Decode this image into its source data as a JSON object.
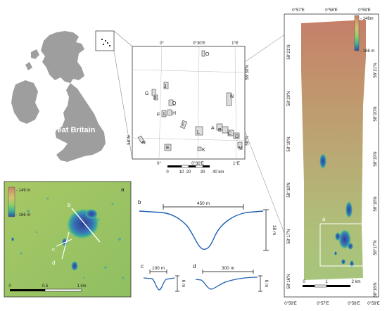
{
  "overview": {
    "country_label": "Great Britain"
  },
  "locator": {
    "lon_top": [
      "0°",
      "0°30'E",
      "1°E"
    ],
    "lon_bottom": [
      "0°",
      "0°30'E",
      "1°E"
    ],
    "lat_left": [
      "58°N"
    ],
    "lat_right": [
      "58°30'N",
      "58°N"
    ],
    "sites": [
      "O",
      "J",
      "G",
      "P",
      "Q",
      "F",
      "L",
      "H",
      "N",
      "I",
      "L",
      "A",
      "B",
      "C",
      "D",
      "R",
      "E",
      "K",
      "M"
    ],
    "scalebar": {
      "ticks": [
        "0",
        "10",
        "20",
        "30",
        "40 km"
      ]
    }
  },
  "survey": {
    "lon_top": [
      "0°57'E",
      "0°58'E",
      "0°59'E"
    ],
    "lon_bottom": [
      "0°56'E",
      "0°57'E",
      "0°58'E",
      "0°59'E"
    ],
    "lat_left": [
      "58°21'N",
      "58°20'N",
      "58°19'N",
      "58°18'N",
      "58°17'N",
      "58°16'N"
    ],
    "lat_right": [
      "58°21'N",
      "58°20'N",
      "58°19'N",
      "58°18'N",
      "58°17'N",
      "58°16'N"
    ],
    "legend": {
      "max": "- 146m",
      "min": "- 166 m"
    },
    "inset_label": "a",
    "scalebar": {
      "ticks": [
        "0",
        "1",
        "2 km"
      ]
    }
  },
  "detail": {
    "panel_label": "a",
    "legend": {
      "max": "- 149 m",
      "min": "- 166 m"
    },
    "profile_marks": [
      "b",
      "c",
      "d"
    ],
    "scalebar": {
      "ticks": [
        "0",
        "0.5",
        "1 km"
      ]
    }
  },
  "profiles": {
    "b": {
      "label": "b",
      "width": "450 m",
      "height": "18 m"
    },
    "c": {
      "label": "c",
      "width": "100 m",
      "height": "6 m"
    },
    "d": {
      "label": "d",
      "width": "300 m",
      "height": "6 m"
    }
  },
  "colors": {
    "land": "#9e9e9e",
    "shallow": "#c8846a",
    "mid": "#b9c27a",
    "deep": "#3a5fa8",
    "profile_line": "#1f5fb0"
  }
}
